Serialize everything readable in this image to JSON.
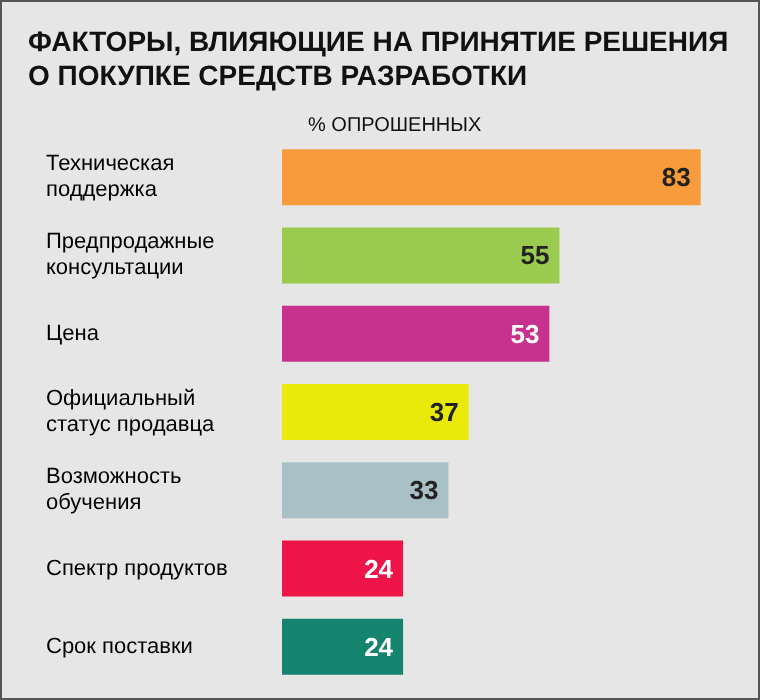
{
  "chart_data": {
    "type": "bar",
    "orientation": "horizontal",
    "title": "ФАКТОРЫ, ВЛИЯЮЩИЕ НА ПРИНЯТИЕ РЕШЕНИЯ\nО ПОКУПКЕ СРЕДСТВ РАЗРАБОТКИ",
    "xlabel": "% ОПРОШЕННЫХ",
    "categories": [
      "Техническая\nподдержка",
      "Предпродажные\nконсультации",
      "Цена",
      "Официальный\nстатус продавца",
      "Возможность\nобучения",
      "Спектр продуктов",
      "Срок поставки"
    ],
    "values": [
      83,
      55,
      53,
      37,
      33,
      24,
      24
    ],
    "colors": [
      "#f79b3c",
      "#9acb4f",
      "#c8328f",
      "#eaea0a",
      "#a9c0c6",
      "#ee1448",
      "#14846f"
    ],
    "data_labels": true
  }
}
